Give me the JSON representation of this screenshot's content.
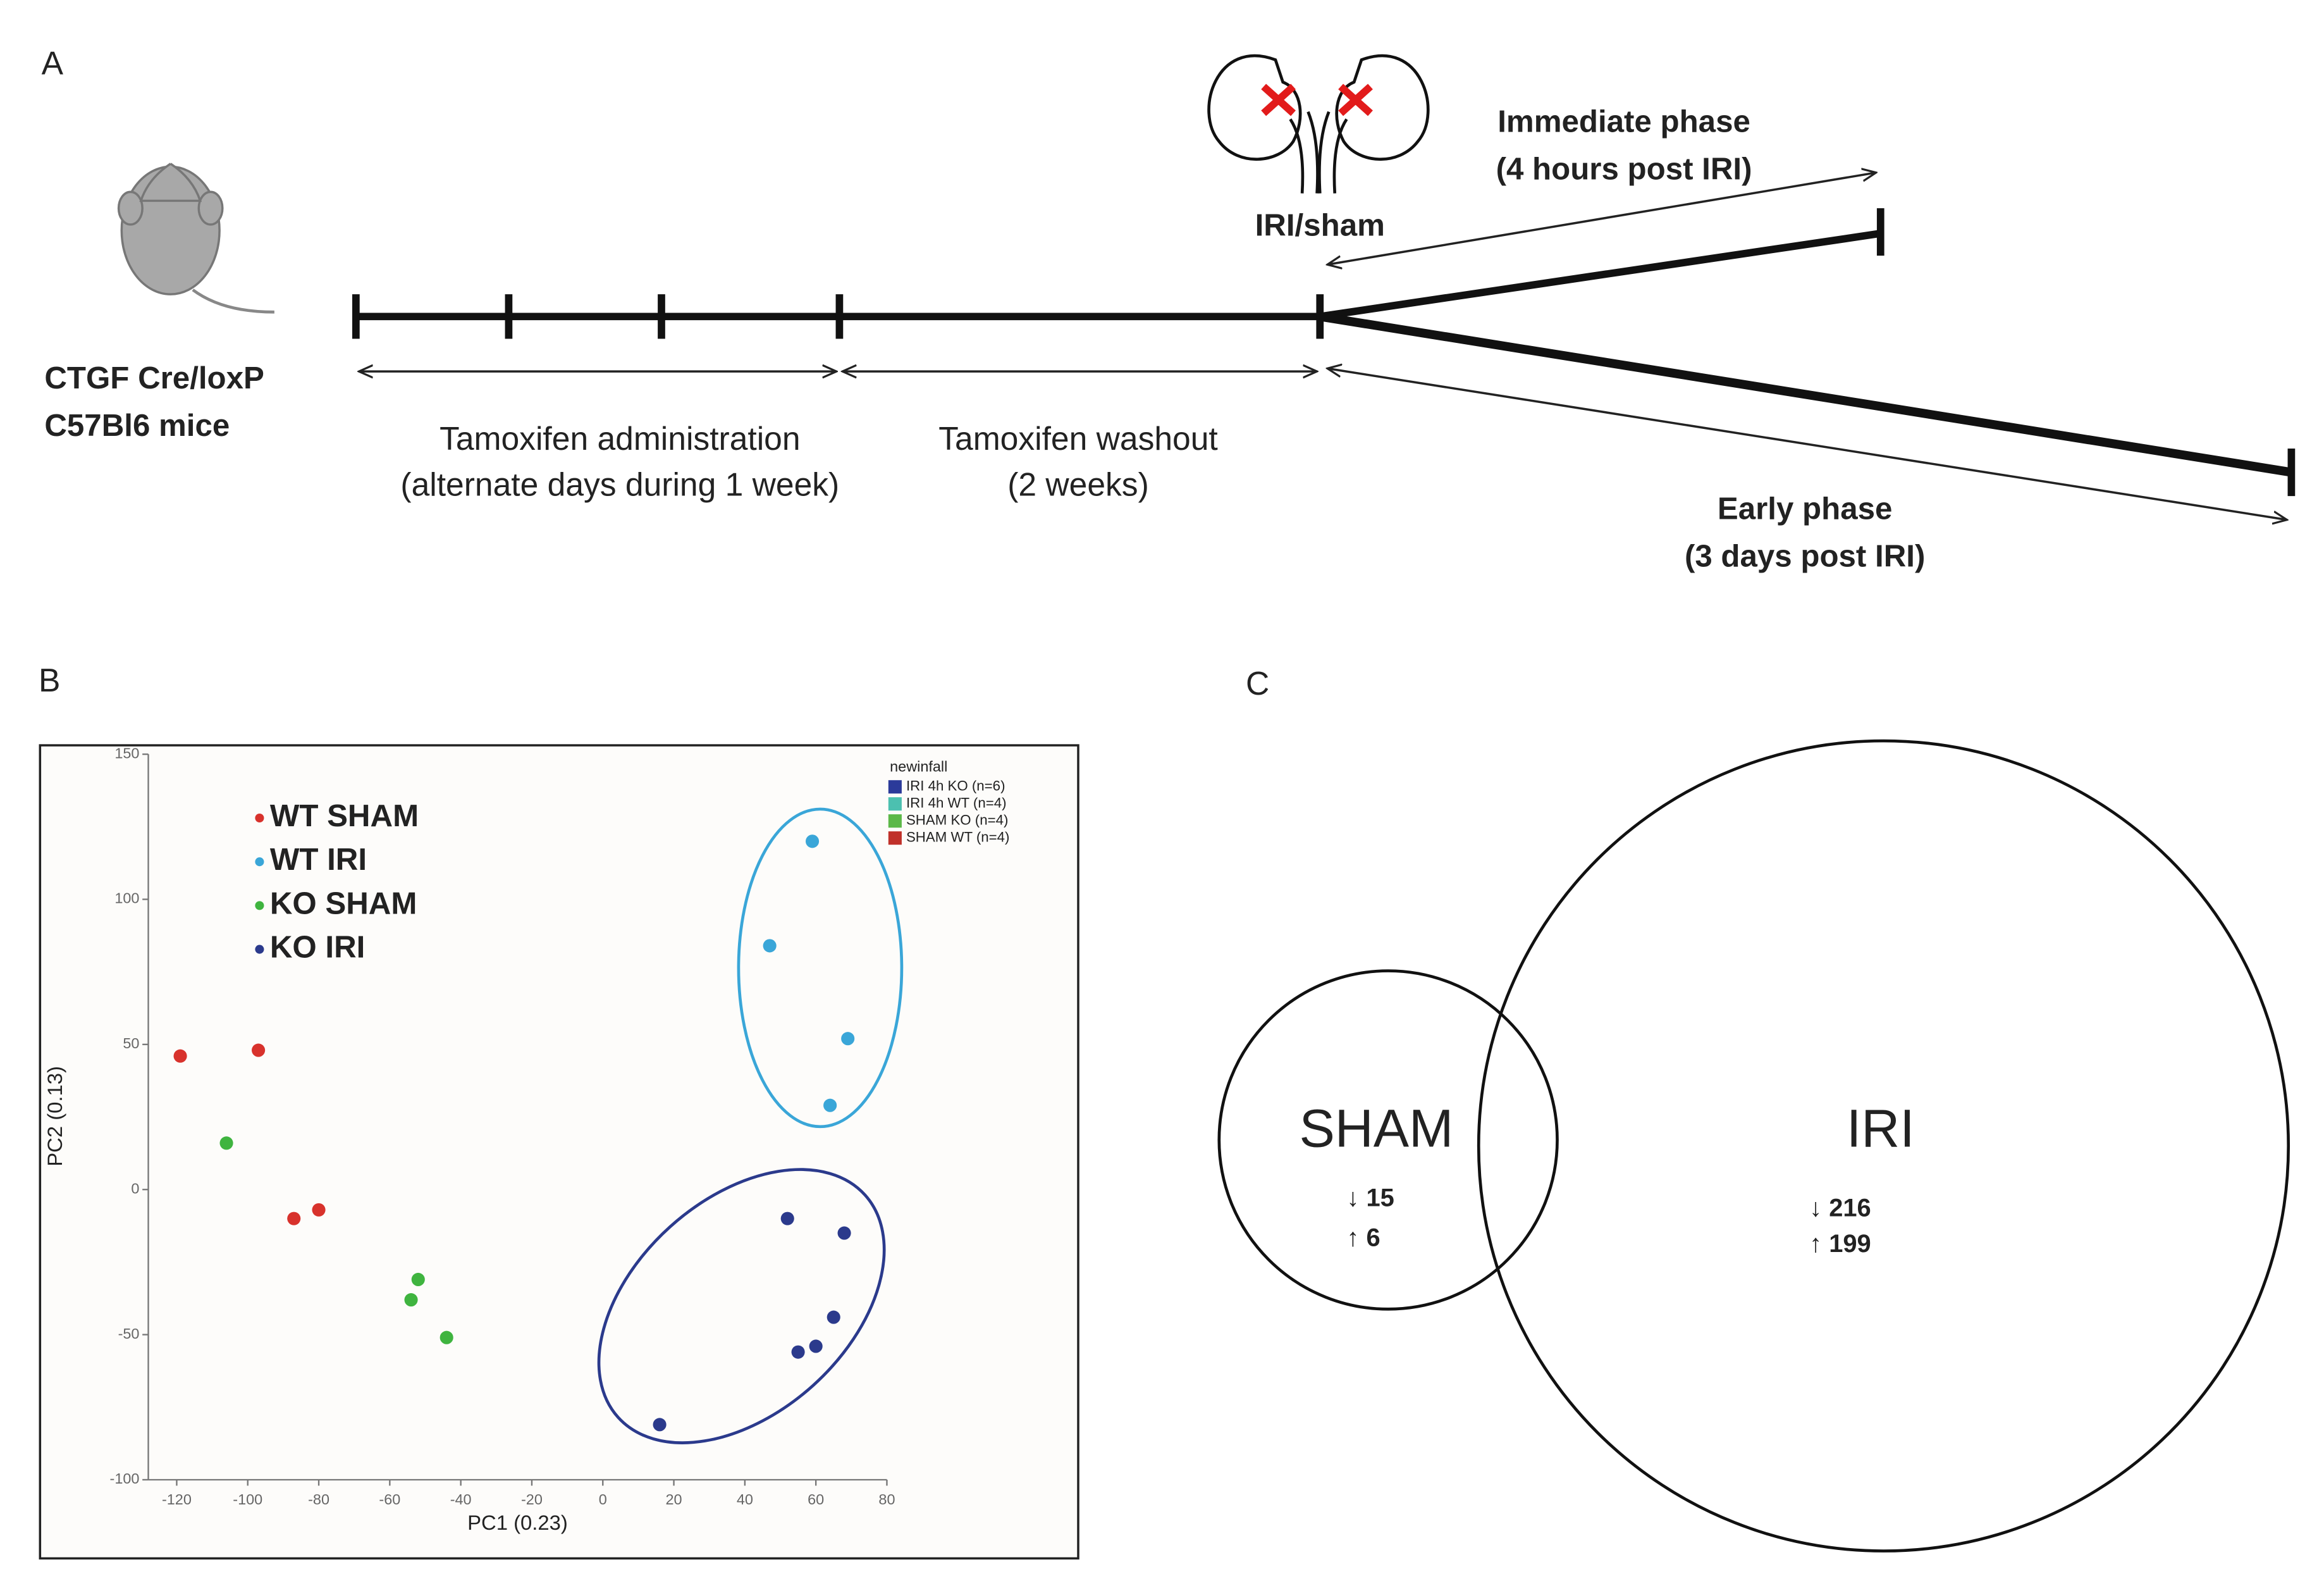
{
  "panel_a": {
    "label": "A",
    "mouse_line1": "CTGF Cre/loxP",
    "mouse_line2": "C57Bl6 mice",
    "tamoxifen_admin": "Tamoxifen administration",
    "tamoxifen_admin_note": "(alternate days during 1 week)",
    "washout": "Tamoxifen washout",
    "washout_note": "(2 weeks)",
    "surgery": "IRI/sham",
    "immediate": "Immediate phase",
    "immediate_note": "(4 hours post IRI)",
    "early": "Early phase",
    "early_note": "(3 days post IRI)"
  },
  "panel_b_label": "B",
  "chart_data": {
    "type": "scatter",
    "xlabel": "PC1 (0.23)",
    "ylabel": "PC2 (0.13)",
    "xlim": [
      -128,
      80
    ],
    "ylim": [
      -100,
      150
    ],
    "xticks": [
      -120,
      -100,
      -80,
      -60,
      -40,
      -20,
      0,
      20,
      40,
      60,
      80
    ],
    "yticks": [
      -100,
      -50,
      0,
      50,
      100,
      150
    ],
    "series": [
      {
        "name": "WT SHAM",
        "color": "#d8322c",
        "x": [
          -119,
          -97,
          -87,
          -80
        ],
        "values": [
          46,
          48,
          -10,
          -7
        ]
      },
      {
        "name": "WT IRI",
        "color": "#3aa6d8",
        "x": [
          59,
          47,
          69,
          64
        ],
        "values": [
          120,
          84,
          52,
          29
        ]
      },
      {
        "name": "KO SHAM",
        "color": "#3fb43f",
        "x": [
          -106,
          -52,
          -54,
          -44
        ],
        "values": [
          16,
          -31,
          -38,
          -51
        ]
      },
      {
        "name": "KO IRI",
        "color": "#2b3a8c",
        "x": [
          52,
          68,
          65,
          60,
          55,
          16
        ],
        "values": [
          -10,
          -15,
          -44,
          -54,
          -56,
          -81
        ]
      }
    ],
    "inset_legend": {
      "title": "newinfall",
      "entries": [
        {
          "name": "IRI 4h KO (n=6)",
          "color": "#2b3a9a"
        },
        {
          "name": "IRI 4h WT (n=4)",
          "color": "#4cc0b0"
        },
        {
          "name": "SHAM KO (n=4)",
          "color": "#5cb848"
        },
        {
          "name": "SHAM WT (n=4)",
          "color": "#c0312a"
        }
      ]
    }
  },
  "panel_c": {
    "label": "C",
    "sham": {
      "title": "SHAM",
      "down": "↓ 15",
      "up": "↑ 6"
    },
    "iri": {
      "title": "IRI",
      "down": "↓ 216",
      "up": "↑ 199"
    }
  }
}
